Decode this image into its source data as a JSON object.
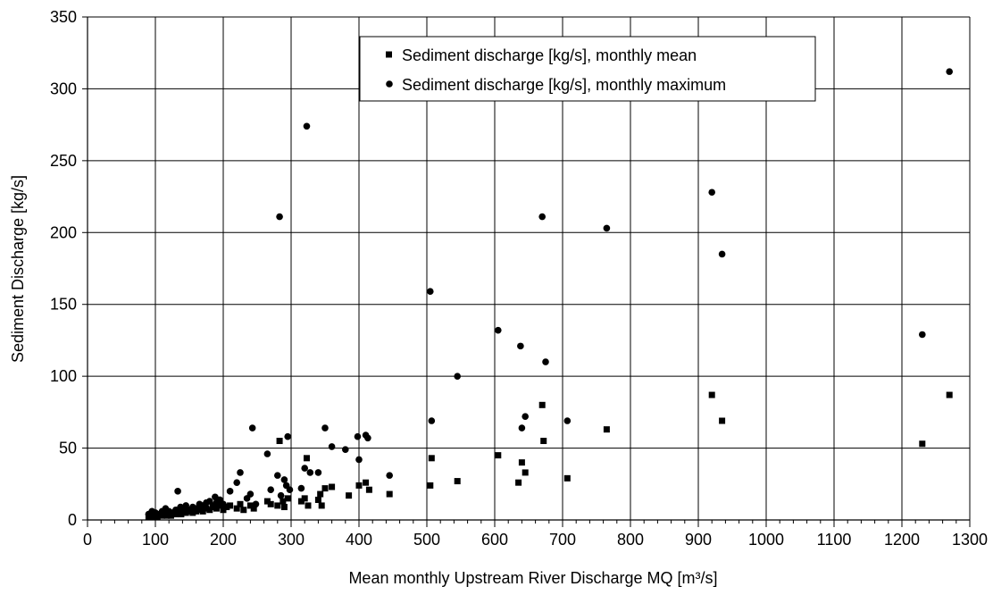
{
  "chart_data": {
    "type": "scatter",
    "title": "",
    "xlabel": "Mean monthly Upstream River Discharge MQ [m³/s]",
    "ylabel": "Sediment Discharge [kg/s]",
    "xlim": [
      0,
      1300
    ],
    "ylim": [
      0,
      350
    ],
    "xticks": [
      0,
      100,
      200,
      300,
      400,
      500,
      600,
      700,
      800,
      900,
      1000,
      1100,
      1200,
      1300
    ],
    "yticks": [
      0,
      50,
      100,
      150,
      200,
      250,
      300,
      350
    ],
    "x_minor_step": 20,
    "grid": true,
    "legend_position": "top-center",
    "series": [
      {
        "name": "Sediment discharge [kg/s], monthly mean",
        "marker": "square",
        "color": "#000000",
        "points": [
          [
            90,
            2
          ],
          [
            93,
            3
          ],
          [
            96,
            2
          ],
          [
            100,
            3
          ],
          [
            103,
            2
          ],
          [
            107,
            4
          ],
          [
            110,
            3
          ],
          [
            113,
            5
          ],
          [
            117,
            3
          ],
          [
            120,
            4
          ],
          [
            123,
            3
          ],
          [
            127,
            5
          ],
          [
            130,
            4
          ],
          [
            135,
            5
          ],
          [
            138,
            4
          ],
          [
            142,
            6
          ],
          [
            145,
            5
          ],
          [
            150,
            6
          ],
          [
            155,
            5
          ],
          [
            160,
            6
          ],
          [
            165,
            7
          ],
          [
            170,
            6
          ],
          [
            175,
            8
          ],
          [
            180,
            7
          ],
          [
            185,
            9
          ],
          [
            190,
            8
          ],
          [
            195,
            10
          ],
          [
            200,
            7
          ],
          [
            205,
            9
          ],
          [
            210,
            10
          ],
          [
            220,
            8
          ],
          [
            225,
            11
          ],
          [
            230,
            7
          ],
          [
            240,
            10
          ],
          [
            245,
            8
          ],
          [
            265,
            13
          ],
          [
            270,
            11
          ],
          [
            280,
            10
          ],
          [
            283,
            55
          ],
          [
            288,
            13
          ],
          [
            290,
            9
          ],
          [
            295,
            15
          ],
          [
            315,
            13
          ],
          [
            320,
            15
          ],
          [
            323,
            43
          ],
          [
            325,
            10
          ],
          [
            340,
            14
          ],
          [
            343,
            18
          ],
          [
            345,
            10
          ],
          [
            350,
            22
          ],
          [
            360,
            23
          ],
          [
            385,
            17
          ],
          [
            400,
            24
          ],
          [
            410,
            26
          ],
          [
            415,
            21
          ],
          [
            445,
            18
          ],
          [
            505,
            24
          ],
          [
            507,
            43
          ],
          [
            545,
            27
          ],
          [
            605,
            45
          ],
          [
            635,
            26
          ],
          [
            640,
            40
          ],
          [
            645,
            33
          ],
          [
            670,
            80
          ],
          [
            672,
            55
          ],
          [
            707,
            29
          ],
          [
            765,
            63
          ],
          [
            920,
            87
          ],
          [
            935,
            69
          ],
          [
            1230,
            53
          ],
          [
            1270,
            87
          ]
        ]
      },
      {
        "name": "Sediment discharge [kg/s], monthly maximum",
        "marker": "circle",
        "color": "#000000",
        "points": [
          [
            90,
            4
          ],
          [
            95,
            6
          ],
          [
            100,
            5
          ],
          [
            105,
            4
          ],
          [
            110,
            6
          ],
          [
            115,
            8
          ],
          [
            120,
            6
          ],
          [
            125,
            5
          ],
          [
            130,
            7
          ],
          [
            133,
            20
          ],
          [
            137,
            9
          ],
          [
            140,
            8
          ],
          [
            145,
            10
          ],
          [
            150,
            7
          ],
          [
            155,
            9
          ],
          [
            160,
            8
          ],
          [
            165,
            11
          ],
          [
            170,
            10
          ],
          [
            175,
            12
          ],
          [
            180,
            13
          ],
          [
            185,
            10
          ],
          [
            188,
            16
          ],
          [
            190,
            12
          ],
          [
            195,
            14
          ],
          [
            200,
            11
          ],
          [
            210,
            20
          ],
          [
            220,
            26
          ],
          [
            225,
            33
          ],
          [
            235,
            15
          ],
          [
            240,
            18
          ],
          [
            243,
            64
          ],
          [
            248,
            11
          ],
          [
            265,
            46
          ],
          [
            270,
            21
          ],
          [
            280,
            31
          ],
          [
            283,
            211
          ],
          [
            285,
            17
          ],
          [
            290,
            28
          ],
          [
            293,
            24
          ],
          [
            295,
            58
          ],
          [
            298,
            21
          ],
          [
            315,
            22
          ],
          [
            320,
            36
          ],
          [
            323,
            274
          ],
          [
            328,
            33
          ],
          [
            340,
            33
          ],
          [
            350,
            64
          ],
          [
            360,
            51
          ],
          [
            380,
            49
          ],
          [
            398,
            58
          ],
          [
            400,
            42
          ],
          [
            410,
            59
          ],
          [
            413,
            57
          ],
          [
            445,
            31
          ],
          [
            505,
            159
          ],
          [
            507,
            69
          ],
          [
            545,
            100
          ],
          [
            605,
            132
          ],
          [
            638,
            121
          ],
          [
            640,
            64
          ],
          [
            645,
            72
          ],
          [
            670,
            211
          ],
          [
            675,
            110
          ],
          [
            707,
            69
          ],
          [
            765,
            203
          ],
          [
            920,
            228
          ],
          [
            935,
            185
          ],
          [
            1230,
            129
          ],
          [
            1270,
            312
          ]
        ]
      }
    ]
  }
}
